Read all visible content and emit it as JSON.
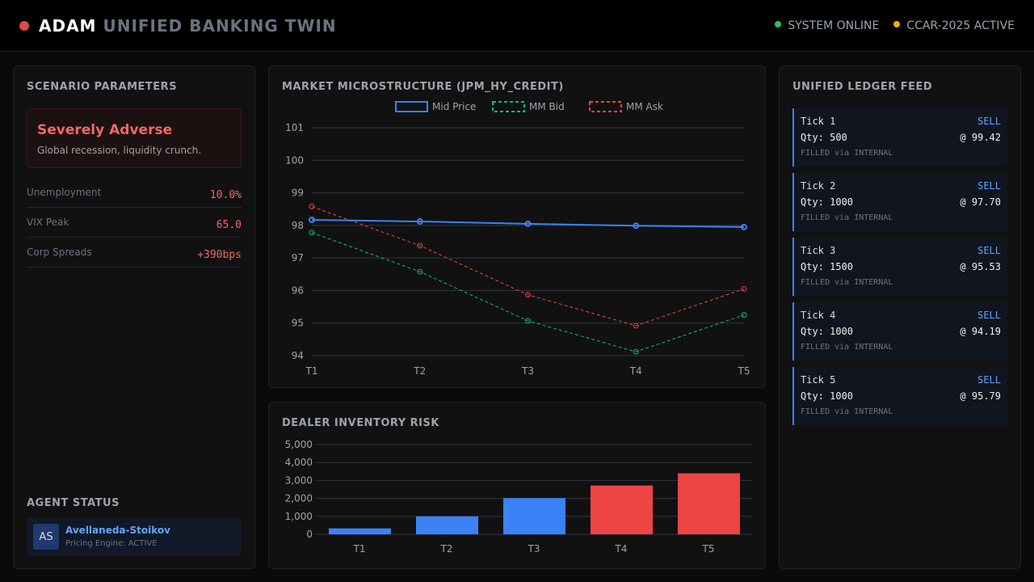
{
  "header": {
    "brand": "ADAM",
    "title": "UNIFIED BANKING TWIN",
    "status": [
      {
        "label": "SYSTEM ONLINE",
        "color": "#22c55e"
      },
      {
        "label": "CCAR-2025 ACTIVE",
        "color": "#eab308"
      }
    ]
  },
  "scenario": {
    "title": "SCENARIO PARAMETERS",
    "name": "Severely Adverse",
    "description": "Global recession, liquidity crunch.",
    "params": [
      {
        "label": "Unemployment",
        "value": "10.0%"
      },
      {
        "label": "VIX Peak",
        "value": "65.0"
      },
      {
        "label": "Corp Spreads",
        "value": "+390bps"
      }
    ]
  },
  "agent": {
    "title": "AGENT STATUS",
    "initials": "AS",
    "name": "Avellaneda-Stoikov",
    "status": "Pricing Engine: ACTIVE"
  },
  "market": {
    "title": "MARKET MICROSTRUCTURE (JPM_HY_CREDIT)"
  },
  "inventory": {
    "title": "DEALER INVENTORY RISK"
  },
  "ledger": {
    "title": "UNIFIED LEDGER FEED",
    "ticks": [
      {
        "label": "Tick 1",
        "side": "SELL",
        "qty": "Qty: 500",
        "price": "@ 99.42",
        "status": "FILLED via INTERNAL"
      },
      {
        "label": "Tick 2",
        "side": "SELL",
        "qty": "Qty: 1000",
        "price": "@ 97.70",
        "status": "FILLED via INTERNAL"
      },
      {
        "label": "Tick 3",
        "side": "SELL",
        "qty": "Qty: 1500",
        "price": "@ 95.53",
        "status": "FILLED via INTERNAL"
      },
      {
        "label": "Tick 4",
        "side": "SELL",
        "qty": "Qty: 1000",
        "price": "@ 94.19",
        "status": "FILLED via INTERNAL"
      },
      {
        "label": "Tick 5",
        "side": "SELL",
        "qty": "Qty: 1000",
        "price": "@ 95.79",
        "status": "FILLED via INTERNAL"
      }
    ]
  },
  "chart_data": [
    {
      "type": "line",
      "categories": [
        "T1",
        "T2",
        "T3",
        "T4",
        "T5"
      ],
      "ylim": [
        94,
        101
      ],
      "yticks": [
        94,
        95,
        96,
        97,
        98,
        99,
        100,
        101
      ],
      "grid": true,
      "legend": "top-center",
      "series": [
        {
          "name": "Mid Price",
          "values": [
            98.17,
            98.12,
            98.05,
            97.99,
            97.95
          ],
          "color": "#3b82f6",
          "dashed": false
        },
        {
          "name": "MM Bid",
          "values": [
            97.78,
            96.58,
            95.07,
            94.12,
            95.25
          ],
          "color": "#10b981",
          "dashed": true
        },
        {
          "name": "MM Ask",
          "values": [
            98.58,
            97.38,
            95.87,
            94.92,
            96.05
          ],
          "color": "#ef4444",
          "dashed": true
        }
      ]
    },
    {
      "type": "bar",
      "categories": [
        "T1",
        "T2",
        "T3",
        "T4",
        "T5"
      ],
      "values": [
        330,
        1000,
        2020,
        2720,
        3400
      ],
      "colors": [
        "#3b82f6",
        "#3b82f6",
        "#3b82f6",
        "#ef4444",
        "#ef4444"
      ],
      "ylim": [
        0,
        5000
      ],
      "yticks": [
        "0",
        "1,000",
        "2,000",
        "3,000",
        "4,000",
        "5,000"
      ],
      "grid": true
    }
  ]
}
